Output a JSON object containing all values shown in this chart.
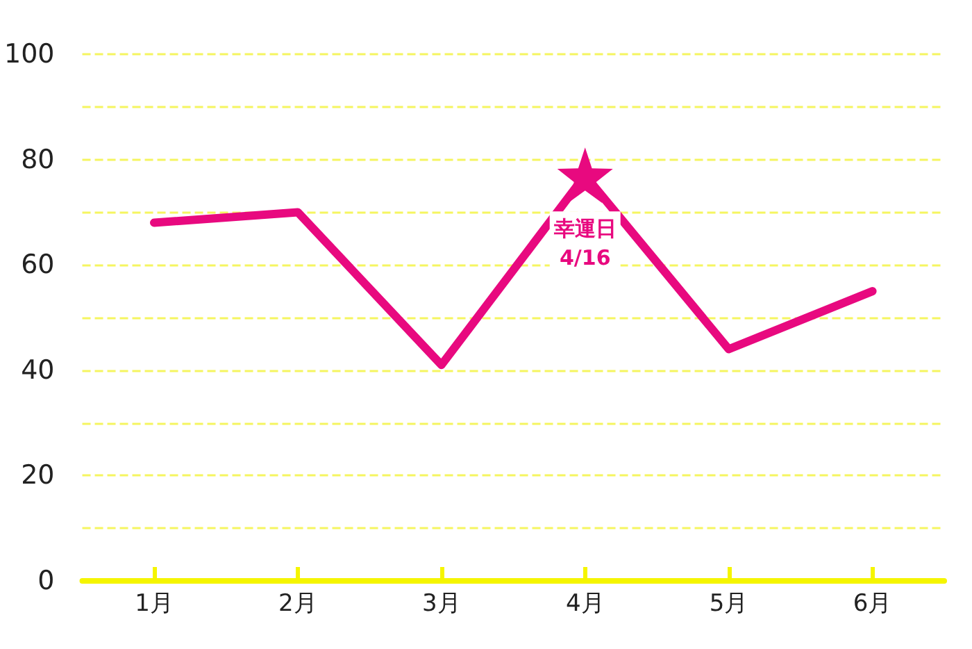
{
  "chart_data": {
    "type": "line",
    "categories": [
      "1月",
      "2月",
      "3月",
      "4月",
      "5月",
      "6月"
    ],
    "series": [
      {
        "color": "#e8097f",
        "values": [
          68,
          70,
          41,
          77,
          44,
          55
        ],
        "marker": "none",
        "line_style": "solid"
      },
      {
        "type": "scatter",
        "color": "#e8097f",
        "x": [
          "4月"
        ],
        "values": [
          77
        ],
        "marker": "star"
      }
    ],
    "ylim": [
      0,
      100
    ],
    "yticks": [
      0,
      20,
      40,
      60,
      80,
      100
    ],
    "grid": "y",
    "annotations": [
      {
        "text": "幸運日\n4/16",
        "x": "4月",
        "y": 77
      }
    ]
  }
}
